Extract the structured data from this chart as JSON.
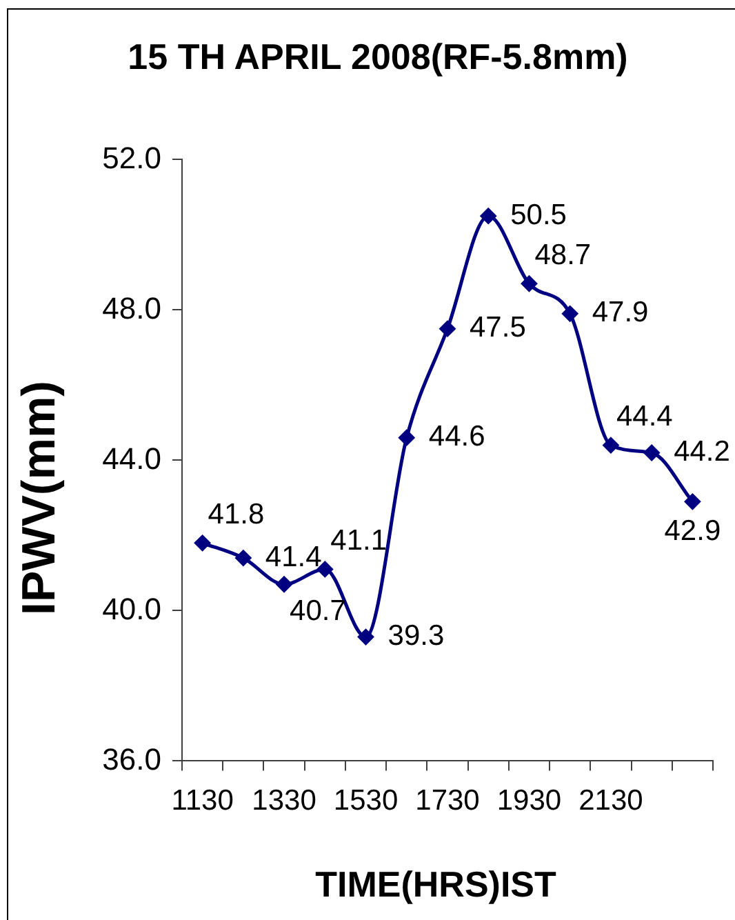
{
  "chart_data": {
    "type": "line",
    "title": "15 TH APRIL 2008(RF-5.8mm)",
    "xlabel": "TIME(HRS)IST",
    "ylabel": "IPWV(mm)",
    "categories": [
      "1130",
      null,
      "1330",
      null,
      "1530",
      null,
      "1730",
      null,
      "1930",
      null,
      "2130",
      null,
      null
    ],
    "series": [
      {
        "color": "#000080",
        "values": [
          41.8,
          41.4,
          40.7,
          41.1,
          39.3,
          44.6,
          47.5,
          50.5,
          48.7,
          47.9,
          44.4,
          44.2,
          42.9
        ]
      }
    ],
    "ylim": [
      36,
      52
    ],
    "yticks": [
      {
        "value": 36,
        "label": "36.0"
      },
      {
        "value": 40,
        "label": "40.0"
      },
      {
        "value": 44,
        "label": "44.0"
      },
      {
        "value": 48,
        "label": "48.0"
      },
      {
        "value": 52,
        "label": "52.0"
      }
    ],
    "marker": "diamond",
    "data_labels": true
  }
}
